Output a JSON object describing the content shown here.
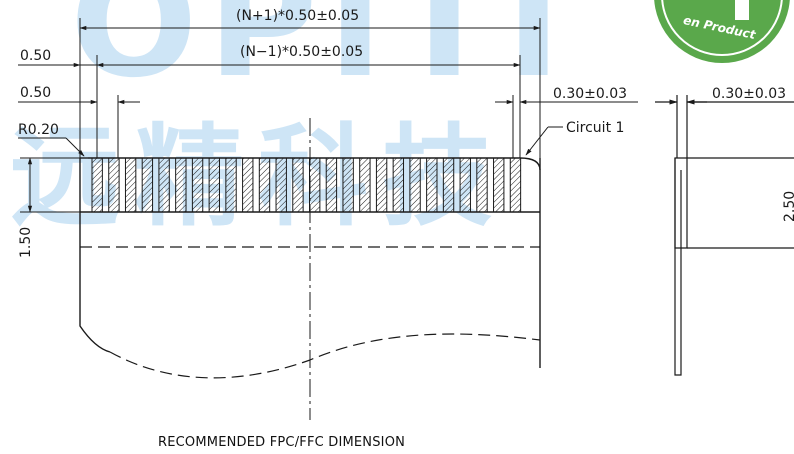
{
  "labels": {
    "pitch_total": "(N+1)*0.50±0.05",
    "pitch_inner": "(N−1)*0.50±0.05",
    "left_top": "0.50",
    "left_second": "0.50",
    "radius": "R0.20",
    "height_left": "1.50",
    "lead_width": "0.30±0.03",
    "circuit": "Circuit  1",
    "side_lead_width": "0.30±0.03",
    "side_height": "2.50",
    "caption": "RECOMMENDED  FPC/FFC  DIMENSION"
  },
  "watermark": {
    "latin_text": "OPITI",
    "cjk_text": "远精科技",
    "badge_text": "en Product"
  },
  "connector": {
    "contact_count": 26
  },
  "colors": {
    "line": "#1a1a1a",
    "watermark": "#1e88d6",
    "badge": "#5aa84b"
  }
}
